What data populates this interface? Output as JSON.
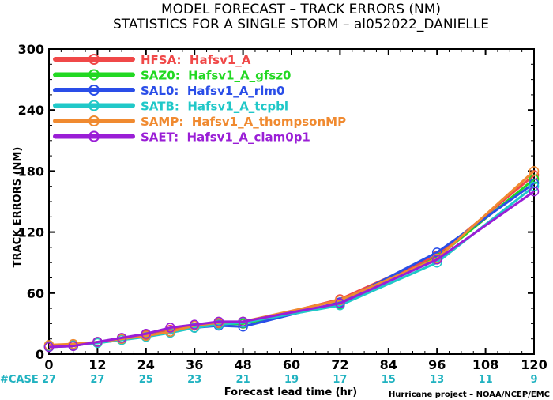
{
  "title_line1": "MODEL FORECAST – TRACK ERRORS (NM)",
  "title_line2": "STATISTICS FOR A SINGLE STORM – al052022_DANIELLE",
  "credit": "Hurricane project – NOAA/NCEP/EMC",
  "case_label": "#CASE",
  "case_counts": [
    "27",
    "27",
    "25",
    "23",
    "21",
    "19",
    "17",
    "15",
    "13",
    "11",
    "9"
  ],
  "chart_data": {
    "type": "line",
    "ylabel": "TRACK ERRORS (NM)",
    "xlabel": "Forecast lead time (hr)",
    "xlim": [
      0,
      120
    ],
    "ylim": [
      0,
      300
    ],
    "x_ticks": [
      0,
      12,
      24,
      36,
      48,
      60,
      72,
      84,
      96,
      108,
      120
    ],
    "y_ticks": [
      0,
      60,
      120,
      180,
      240,
      300
    ],
    "x": [
      0,
      6,
      12,
      18,
      24,
      30,
      36,
      42,
      48,
      72,
      96,
      120
    ],
    "legend_position": "top-left",
    "grid": false,
    "series": [
      {
        "name": "HFSA:  Hafsv1_A",
        "color": "#f04848",
        "values": [
          8,
          9,
          12,
          15,
          19,
          24,
          28,
          30,
          30,
          54,
          97,
          176
        ]
      },
      {
        "name": "SAZ0:  Hafsv1_A_gfsz0",
        "color": "#22d822",
        "values": [
          7,
          9,
          11,
          14,
          18,
          22,
          26,
          29,
          30,
          49,
          95,
          172
        ]
      },
      {
        "name": "SAL0:  Hafsv1_A_rlm0",
        "color": "#2a4ee8",
        "values": [
          7,
          8,
          12,
          15,
          18,
          22,
          26,
          28,
          27,
          51,
          100,
          168
        ]
      },
      {
        "name": "SATB:  Hafsv1_A_tcpbl",
        "color": "#20c8c8",
        "values": [
          8,
          9,
          11,
          14,
          17,
          21,
          26,
          29,
          31,
          48,
          90,
          165
        ]
      },
      {
        "name": "SAMP:  Hafsv1_A_thompsonMP",
        "color": "#f08a30",
        "values": [
          9,
          10,
          12,
          15,
          18,
          22,
          28,
          31,
          32,
          53,
          94,
          180
        ]
      },
      {
        "name": "SAET:  Hafsv1_A_clam0p1",
        "color": "#9a1ed6",
        "values": [
          7,
          8,
          12,
          16,
          20,
          26,
          29,
          32,
          32,
          50,
          93,
          160
        ]
      }
    ]
  }
}
